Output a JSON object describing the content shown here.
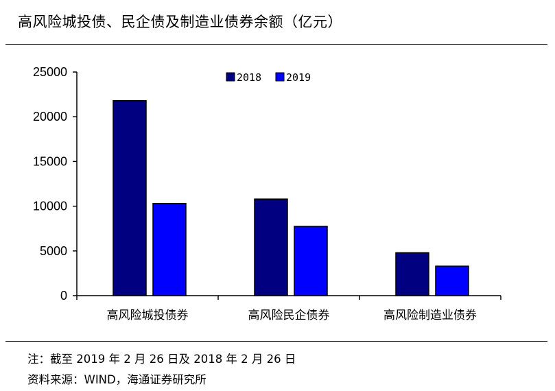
{
  "title": "高风险城投债、民企债及制造业债券余额（亿元）",
  "note_line1": "注：截至 2019 年 2 月 26 日及 2018 年 2 月 26 日",
  "note_line2": "资料来源：WIND，海通证券研究所",
  "chart_data": {
    "type": "bar",
    "categories": [
      "高风险城投债券",
      "高风险民企债券",
      "高风险制造业债券"
    ],
    "series": [
      {
        "name": "2018",
        "values": [
          21800,
          10800,
          4800
        ],
        "color": "#000080"
      },
      {
        "name": "2019",
        "values": [
          10300,
          7750,
          3300
        ],
        "color": "#0000ff"
      }
    ],
    "ylim": [
      0,
      25000
    ],
    "yticks": [
      0,
      5000,
      10000,
      15000,
      20000,
      25000
    ],
    "ytick_labels": [
      "0",
      "5000",
      "10000",
      "15000",
      "20000",
      "25000"
    ],
    "legend_position": "top-center",
    "grid": false
  }
}
